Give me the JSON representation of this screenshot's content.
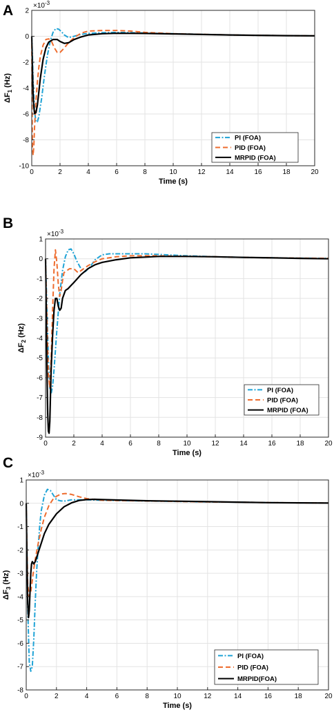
{
  "colors": {
    "pi": "#1fa3d6",
    "pid": "#ee6c2e",
    "mrpid": "#000000",
    "grid": "#e3e3e3"
  },
  "chart_data": [
    {
      "type": "line",
      "panel_label": "A",
      "xlabel": "Time (s)",
      "ylabel_main": "ΔF",
      "ylabel_sub": "1",
      "ylabel_unit": "(Hz)",
      "exponent_label": "×10",
      "exponent_power": "-3",
      "xlim": [
        0,
        20
      ],
      "ylim": [
        -10,
        2
      ],
      "xticks": [
        0,
        2,
        4,
        6,
        8,
        10,
        12,
        14,
        16,
        18,
        20
      ],
      "yticks": [
        -10,
        -8,
        -6,
        -4,
        -2,
        0,
        2
      ],
      "legend_position": "bottom-right",
      "grid": true,
      "series": [
        {
          "name": "PI (FOA)",
          "style": "dashdot",
          "color_key": "pi",
          "x": [
            0,
            0.05,
            0.1,
            0.2,
            0.3,
            0.4,
            0.5,
            0.7,
            0.9,
            1.1,
            1.3,
            1.5,
            1.7,
            1.9,
            2.1,
            2.3,
            2.6,
            3.0,
            3.5,
            4.0,
            5.0,
            6.0,
            7.0,
            8.0,
            10.0,
            12.0,
            14.0,
            16.0,
            18.0,
            20.0
          ],
          "y": [
            0,
            -1.5,
            -3.5,
            -5.8,
            -6.6,
            -6.6,
            -6.2,
            -4.8,
            -3.0,
            -1.5,
            -0.4,
            0.3,
            0.6,
            0.55,
            0.35,
            0.1,
            -0.1,
            0.0,
            0.15,
            0.22,
            0.28,
            0.3,
            0.28,
            0.25,
            0.2,
            0.15,
            0.1,
            0.07,
            0.05,
            0.03
          ]
        },
        {
          "name": "PID (FOA)",
          "style": "dashed",
          "color_key": "pid",
          "x": [
            0,
            0.02,
            0.05,
            0.1,
            0.15,
            0.2,
            0.3,
            0.4,
            0.5,
            0.6,
            0.8,
            1.0,
            1.2,
            1.4,
            1.6,
            1.8,
            2.0,
            2.3,
            2.6,
            3.0,
            3.5,
            4.0,
            5.0,
            6.0,
            7.0,
            8.0,
            10.0,
            12.0,
            14.0,
            16.0,
            18.0,
            20.0
          ],
          "y": [
            0,
            -5.0,
            -8.5,
            -9.2,
            -8.4,
            -7.0,
            -5.0,
            -3.5,
            -2.4,
            -1.6,
            -0.7,
            -0.25,
            -0.2,
            -0.4,
            -0.9,
            -1.25,
            -1.25,
            -0.9,
            -0.5,
            -0.1,
            0.25,
            0.4,
            0.45,
            0.45,
            0.4,
            0.3,
            0.2,
            0.15,
            0.1,
            0.07,
            0.05,
            0.03
          ]
        },
        {
          "name": "MRPID (FOA)",
          "style": "solid",
          "color_key": "mrpid",
          "x": [
            0,
            0.05,
            0.1,
            0.15,
            0.2,
            0.3,
            0.4,
            0.5,
            0.6,
            0.8,
            1.0,
            1.2,
            1.5,
            1.8,
            2.0,
            2.3,
            2.6,
            3.0,
            3.5,
            4.0,
            5.0,
            6.0,
            8.0,
            10.0,
            12.0,
            14.0,
            16.0,
            18.0,
            20.0
          ],
          "y": [
            0,
            -2.5,
            -4.5,
            -5.5,
            -5.95,
            -5.9,
            -5.3,
            -4.3,
            -3.3,
            -1.8,
            -0.9,
            -0.45,
            -0.25,
            -0.25,
            -0.4,
            -0.55,
            -0.5,
            -0.25,
            -0.05,
            0.1,
            0.2,
            0.23,
            0.22,
            0.18,
            0.14,
            0.1,
            0.07,
            0.05,
            0.03
          ]
        }
      ]
    },
    {
      "type": "line",
      "panel_label": "B",
      "xlabel": "Time (s)",
      "ylabel_main": "ΔF",
      "ylabel_sub": "2",
      "ylabel_unit": "(Hz)",
      "exponent_label": "×10",
      "exponent_power": "-3",
      "xlim": [
        0,
        20
      ],
      "ylim": [
        -9,
        1
      ],
      "xticks": [
        0,
        2,
        4,
        6,
        8,
        10,
        12,
        14,
        16,
        18,
        20
      ],
      "yticks": [
        -9,
        -8,
        -7,
        -6,
        -5,
        -4,
        -3,
        -2,
        -1,
        0,
        1
      ],
      "legend_position": "bottom-right",
      "grid": true,
      "series": [
        {
          "name": "PI (FOA)",
          "style": "dashdot",
          "color_key": "pi",
          "x": [
            0,
            0.1,
            0.2,
            0.3,
            0.4,
            0.5,
            0.6,
            0.8,
            1.0,
            1.2,
            1.4,
            1.6,
            1.8,
            2.0,
            2.2,
            2.5,
            2.8,
            3.1,
            3.5,
            4.0,
            4.5,
            5.0,
            6.0,
            7.0,
            8.0,
            10.0,
            12.0,
            14.0,
            16.0,
            18.0,
            20.0
          ],
          "y": [
            0,
            -2.5,
            -5.0,
            -6.5,
            -6.8,
            -6.4,
            -5.6,
            -3.6,
            -1.8,
            -0.6,
            0.1,
            0.45,
            0.5,
            0.25,
            -0.1,
            -0.5,
            -0.65,
            -0.45,
            -0.05,
            0.2,
            0.25,
            0.25,
            0.25,
            0.25,
            0.22,
            0.15,
            0.1,
            0.07,
            0.05,
            0.03,
            0.02
          ]
        },
        {
          "name": "PID (FOA)",
          "style": "dashed",
          "color_key": "pid",
          "x": [
            0,
            0.1,
            0.2,
            0.3,
            0.4,
            0.5,
            0.6,
            0.7,
            0.8,
            0.9,
            1.0,
            1.1,
            1.2,
            1.3,
            1.5,
            1.7,
            2.0,
            2.3,
            2.6,
            3.0,
            3.5,
            4.0,
            5.0,
            6.0,
            8.0,
            10.0,
            12.0,
            14.0,
            16.0,
            18.0,
            20.0
          ],
          "y": [
            0,
            -3.0,
            -5.8,
            -6.5,
            -5.0,
            -2.5,
            -0.5,
            0.45,
            -0.2,
            -1.3,
            -1.9,
            -1.6,
            -1.1,
            -0.7,
            -0.6,
            -0.5,
            -0.5,
            -0.7,
            -0.55,
            -0.35,
            -0.15,
            0.0,
            0.1,
            0.15,
            0.15,
            0.12,
            0.1,
            0.07,
            0.05,
            0.03,
            0.02
          ]
        },
        {
          "name": "MRPID (FOA)",
          "style": "solid",
          "color_key": "mrpid",
          "x": [
            0,
            0.05,
            0.1,
            0.15,
            0.2,
            0.25,
            0.3,
            0.35,
            0.4,
            0.5,
            0.6,
            0.7,
            0.8,
            0.9,
            1.0,
            1.1,
            1.2,
            1.4,
            1.6,
            1.8,
            2.0,
            2.5,
            3.0,
            3.5,
            4.0,
            5.0,
            6.0,
            8.0,
            10.0,
            12.0,
            14.0,
            16.0,
            18.0,
            20.0
          ],
          "y": [
            0,
            -2.5,
            -5.5,
            -7.8,
            -8.7,
            -8.8,
            -8.2,
            -6.8,
            -5.5,
            -3.8,
            -2.6,
            -2.0,
            -2.0,
            -2.4,
            -2.6,
            -2.5,
            -2.0,
            -1.6,
            -1.5,
            -1.35,
            -1.2,
            -0.8,
            -0.5,
            -0.3,
            -0.18,
            -0.05,
            0.05,
            0.12,
            0.12,
            0.1,
            0.07,
            0.05,
            0.02,
            0.0
          ]
        }
      ]
    },
    {
      "type": "line",
      "panel_label": "C",
      "xlabel": "Time (s)",
      "ylabel_main": "ΔF",
      "ylabel_sub": "3",
      "ylabel_unit": "(Hz)",
      "exponent_label": "×10",
      "exponent_power": "-3",
      "xlim": [
        0,
        20
      ],
      "ylim": [
        -8,
        1
      ],
      "xticks": [
        0,
        2,
        4,
        6,
        8,
        10,
        12,
        14,
        16,
        18,
        20
      ],
      "yticks": [
        -8,
        -7,
        -6,
        -5,
        -4,
        -3,
        -2,
        -1,
        0,
        1
      ],
      "legend_position": "bottom-right",
      "grid": true,
      "series": [
        {
          "name": "PI (FOA)",
          "style": "dashdot",
          "color_key": "pi",
          "x": [
            0,
            0.05,
            0.1,
            0.2,
            0.3,
            0.4,
            0.5,
            0.6,
            0.7,
            0.8,
            0.9,
            1.0,
            1.2,
            1.4,
            1.6,
            1.8,
            2.0,
            2.3,
            2.6,
            3.0,
            3.5,
            4.0,
            5.0,
            6.0,
            8.0,
            10.0,
            12.0,
            14.0,
            16.0,
            18.0,
            20.0
          ],
          "y": [
            0,
            -2.0,
            -4.5,
            -6.8,
            -7.2,
            -7.0,
            -5.8,
            -4.2,
            -2.8,
            -1.8,
            -0.9,
            -0.3,
            0.35,
            0.6,
            0.55,
            0.35,
            0.15,
            0.1,
            0.1,
            0.15,
            0.15,
            0.15,
            0.13,
            0.12,
            0.1,
            0.08,
            0.06,
            0.05,
            0.03,
            0.02,
            0.01
          ]
        },
        {
          "name": "PID (FOA)",
          "style": "dashed",
          "color_key": "pid",
          "x": [
            0,
            0.05,
            0.1,
            0.2,
            0.3,
            0.4,
            0.5,
            0.6,
            0.8,
            1.0,
            1.2,
            1.5,
            1.8,
            2.0,
            2.3,
            2.6,
            3.0,
            3.5,
            4.0,
            5.0,
            6.0,
            8.0,
            10.0,
            12.0,
            14.0,
            16.0,
            18.0,
            20.0
          ],
          "y": [
            0,
            -2.0,
            -3.5,
            -4.0,
            -3.8,
            -3.3,
            -2.8,
            -2.4,
            -1.7,
            -1.1,
            -0.6,
            -0.1,
            0.2,
            0.3,
            0.4,
            0.42,
            0.38,
            0.28,
            0.2,
            0.13,
            0.12,
            0.1,
            0.08,
            0.06,
            0.05,
            0.03,
            0.02,
            0.01
          ]
        },
        {
          "name": "MRPID(FOA)",
          "style": "solid",
          "color_key": "mrpid",
          "x": [
            0,
            0.05,
            0.1,
            0.15,
            0.2,
            0.25,
            0.3,
            0.35,
            0.4,
            0.5,
            0.6,
            0.7,
            0.8,
            1.0,
            1.2,
            1.5,
            2.0,
            2.5,
            3.0,
            3.5,
            4.0,
            4.5,
            5.0,
            6.0,
            8.0,
            10.0,
            12.0,
            14.0,
            16.0,
            18.0,
            20.0
          ],
          "y": [
            0,
            -2.5,
            -4.3,
            -4.9,
            -4.6,
            -3.8,
            -3.0,
            -2.6,
            -2.5,
            -2.6,
            -2.5,
            -2.3,
            -2.1,
            -1.7,
            -1.3,
            -0.9,
            -0.45,
            -0.15,
            0.02,
            0.12,
            0.16,
            0.17,
            0.16,
            0.14,
            0.11,
            0.09,
            0.07,
            0.05,
            0.03,
            0.02,
            0.01
          ]
        }
      ]
    }
  ]
}
